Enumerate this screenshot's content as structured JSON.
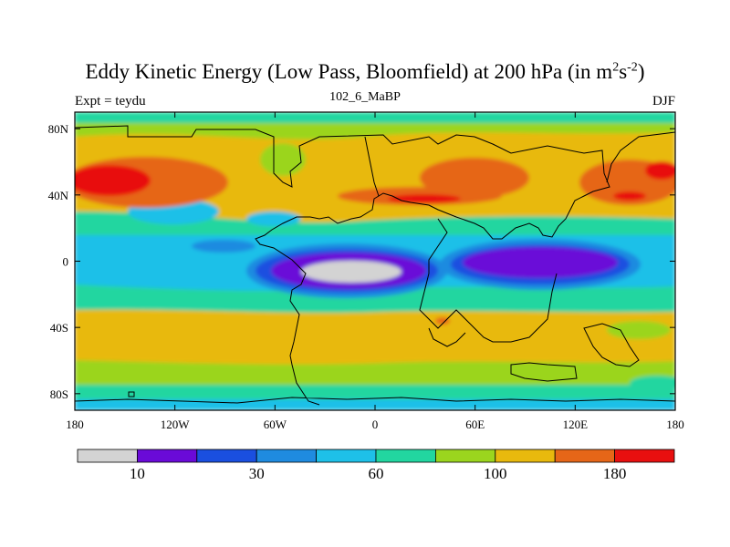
{
  "title": {
    "main": "Eddy Kinetic Energy (Low Pass, Bloomfield) at 200 hPa (in m",
    "sup1": "2",
    "s": "s",
    "sup2": "-2",
    "close": ")"
  },
  "subtitle": "102_6_MaBP",
  "left_label": "Expt = teydu",
  "right_label": "DJF",
  "chart_data": {
    "type": "heatmap",
    "title": "Eddy Kinetic Energy (Low Pass, Bloomfield) at 200 hPa (in m2s-2)",
    "subtitle": "102_6_MaBP",
    "x_ticks": [
      {
        "value": -180,
        "label": "180"
      },
      {
        "value": -120,
        "label": "120W"
      },
      {
        "value": -60,
        "label": "60W"
      },
      {
        "value": 0,
        "label": "0"
      },
      {
        "value": 60,
        "label": "60E"
      },
      {
        "value": 120,
        "label": "120E"
      },
      {
        "value": 180,
        "label": "180"
      }
    ],
    "y_ticks": [
      {
        "value": 80,
        "label": "80N"
      },
      {
        "value": 40,
        "label": "40N"
      },
      {
        "value": 0,
        "label": "0"
      },
      {
        "value": -40,
        "label": "40S"
      },
      {
        "value": -80,
        "label": "80S"
      }
    ],
    "xlim": [
      -180,
      180
    ],
    "ylim": [
      -90,
      90
    ],
    "colorbar": {
      "colors": [
        "#d3d3d3",
        "#6a0ad8",
        "#1a4fe0",
        "#1f8be0",
        "#1ec0e8",
        "#22d6a0",
        "#9bd51e",
        "#e8b90d",
        "#e66618",
        "#e80f0f"
      ],
      "boundaries": [
        5,
        10,
        20,
        30,
        45,
        60,
        80,
        100,
        140,
        180
      ],
      "labels": [
        {
          "after_bin": 1,
          "label": "10"
        },
        {
          "after_bin": 3,
          "label": "30"
        },
        {
          "after_bin": 5,
          "label": "60"
        },
        {
          "after_bin": 7,
          "label": "100"
        },
        {
          "after_bin": 9,
          "label": "180"
        }
      ]
    }
  }
}
